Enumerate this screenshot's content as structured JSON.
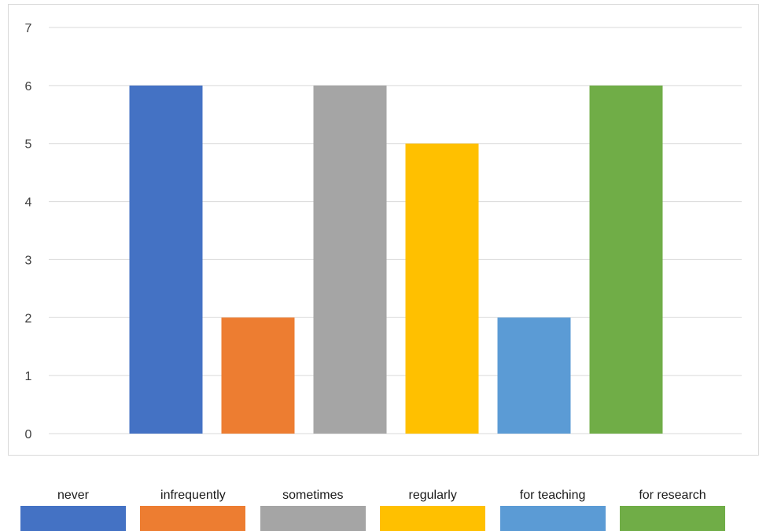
{
  "chart_data": {
    "type": "bar",
    "categories": [
      "never",
      "infrequently",
      "sometimes",
      "regularly",
      "for teaching",
      "for research"
    ],
    "values": [
      6,
      2,
      6,
      5,
      2,
      6
    ],
    "colors": [
      "#4472C4",
      "#ED7D31",
      "#A5A5A5",
      "#FFC000",
      "#5B9BD5",
      "#70AD47"
    ],
    "ylim": [
      0,
      7
    ],
    "yticks": [
      0,
      1,
      2,
      3,
      4,
      5,
      6,
      7
    ],
    "grid": true,
    "legend_position": "bottom",
    "title": "",
    "xlabel": "",
    "ylabel": ""
  }
}
